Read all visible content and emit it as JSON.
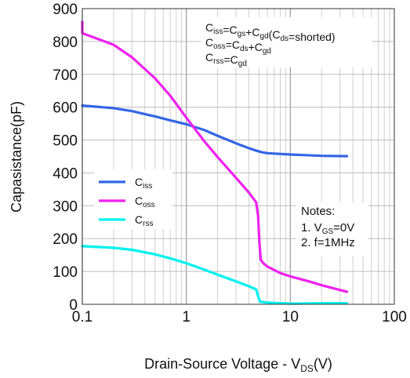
{
  "chart_data": {
    "type": "line",
    "x_scale": "log",
    "xlim": [
      0.1,
      100
    ],
    "ylim": [
      0,
      900
    ],
    "grid": true,
    "x_ticks": [
      "0.1",
      "1",
      "10",
      "100"
    ],
    "y_ticks": [
      "0",
      "100",
      "200",
      "300",
      "400",
      "500",
      "600",
      "700",
      "800",
      "900"
    ],
    "xlabel": {
      "main": "Drain-Source Voltage - V",
      "sub": "DS",
      "tail": "(V)"
    },
    "ylabel": "Capasistance(pF)",
    "legend_position": "left-middle",
    "formulas": [
      "Ciss=Cgs+Cgd(Cds=shorted)",
      "Coss=Cds+Cgd",
      "Crss=Cgd"
    ],
    "notes": {
      "title": "Notes:",
      "items": [
        "1. VGS=0V",
        "2. f=1MHz"
      ]
    },
    "series": [
      {
        "name": "Ciss",
        "color": "#3366e6",
        "points": [
          [
            0.1,
            605
          ],
          [
            0.2,
            597
          ],
          [
            0.3,
            588
          ],
          [
            0.5,
            572
          ],
          [
            0.7,
            560
          ],
          [
            1.0,
            548
          ],
          [
            1.5,
            530
          ],
          [
            2.0,
            513
          ],
          [
            3.0,
            490
          ],
          [
            4.0,
            475
          ],
          [
            5.0,
            465
          ],
          [
            5.5,
            462
          ],
          [
            6.0,
            460
          ],
          [
            10,
            456
          ],
          [
            20,
            452
          ],
          [
            35,
            451
          ]
        ]
      },
      {
        "name": "Coss",
        "color": "#ee22ee",
        "points": [
          [
            0.1,
            860
          ],
          [
            0.1,
            825
          ],
          [
            0.13,
            812
          ],
          [
            0.2,
            790
          ],
          [
            0.3,
            752
          ],
          [
            0.5,
            688
          ],
          [
            0.7,
            635
          ],
          [
            1.0,
            568
          ],
          [
            1.5,
            495
          ],
          [
            2.0,
            448
          ],
          [
            3.0,
            385
          ],
          [
            4.0,
            340
          ],
          [
            4.7,
            310
          ],
          [
            4.9,
            270
          ],
          [
            5.05,
            185
          ],
          [
            5.2,
            135
          ],
          [
            5.5,
            125
          ],
          [
            6.0,
            115
          ],
          [
            8.0,
            95
          ],
          [
            10,
            85
          ],
          [
            15,
            70
          ],
          [
            20,
            58
          ],
          [
            35,
            38
          ]
        ]
      },
      {
        "name": "Crss",
        "color": "#00f0f0",
        "points": [
          [
            0.1,
            177
          ],
          [
            0.2,
            172
          ],
          [
            0.3,
            166
          ],
          [
            0.5,
            152
          ],
          [
            0.7,
            140
          ],
          [
            1.0,
            125
          ],
          [
            1.5,
            105
          ],
          [
            2.0,
            90
          ],
          [
            3.0,
            70
          ],
          [
            4.0,
            55
          ],
          [
            4.7,
            45
          ],
          [
            4.9,
            25
          ],
          [
            5.1,
            8
          ],
          [
            6.0,
            5
          ],
          [
            10,
            2
          ],
          [
            20,
            3
          ],
          [
            35,
            3
          ]
        ]
      }
    ]
  }
}
